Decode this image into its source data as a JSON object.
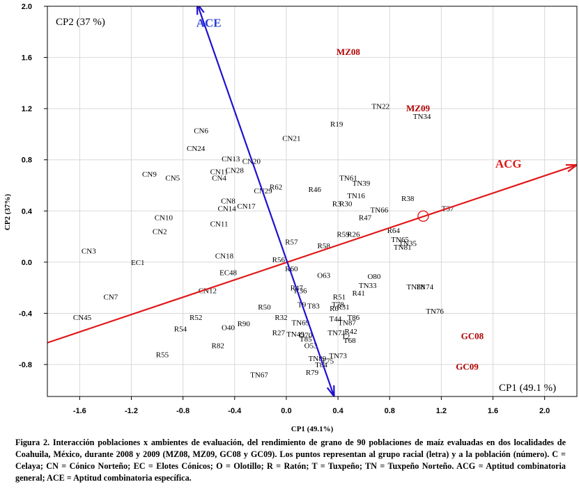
{
  "chart_data": {
    "type": "scatter",
    "title": "",
    "xlabel": "CP1 (49.1%)",
    "ylabel": "CP2 (37%)",
    "xlim": [
      -1.85,
      2.25
    ],
    "ylim": [
      -1.05,
      2.0
    ],
    "xticks": [
      -1.6,
      -1.2,
      -0.8,
      -0.4,
      0.0,
      0.4,
      0.8,
      1.2,
      1.6,
      2.0
    ],
    "yticks": [
      -0.8,
      -0.4,
      0.0,
      0.4,
      0.8,
      1.2,
      1.6,
      2.0
    ],
    "xtick_labels": [
      "-1.6",
      "-1.2",
      "-0.8",
      "-0.4",
      "0.0",
      "0.4",
      "0.8",
      "1.2",
      "1.6",
      "2.0"
    ],
    "ytick_labels": [
      "-0.8",
      "-0.4",
      "0.0",
      "0.4",
      "0.8",
      "1.2",
      "1.6",
      "2.0"
    ],
    "corner_labels": {
      "top_left": "CP2 (37 %)",
      "bottom_right": "CP1 (49.1 %)"
    },
    "vectors": [
      {
        "name": "ACG",
        "color": "#e01818",
        "from": [
          -1.85,
          -0.63
        ],
        "to": [
          2.25,
          0.76
        ],
        "label_at": [
          1.72,
          0.74
        ]
      },
      {
        "name": "ACE",
        "color": "#2010d0",
        "from": [
          0.37,
          -1.05
        ],
        "to": [
          -0.69,
          2.02
        ],
        "label_at": [
          -0.6,
          1.84
        ]
      }
    ],
    "origin_marker": [
      1.06,
      0.36
    ],
    "environments": [
      {
        "label": "MZ08",
        "x": 0.48,
        "y": 1.64
      },
      {
        "label": "MZ09",
        "x": 1.02,
        "y": 1.2
      },
      {
        "label": "GC08",
        "x": 1.44,
        "y": -0.58
      },
      {
        "label": "GC09",
        "x": 1.4,
        "y": -0.82
      }
    ],
    "points": [
      {
        "label": "CN6",
        "x": -0.66,
        "y": 1.03
      },
      {
        "label": "CN24",
        "x": -0.7,
        "y": 0.89
      },
      {
        "label": "CN13",
        "x": -0.43,
        "y": 0.81
      },
      {
        "label": "CN20",
        "x": -0.27,
        "y": 0.79
      },
      {
        "label": "CN11",
        "x": -0.52,
        "y": 0.71
      },
      {
        "label": "CN28",
        "x": -0.4,
        "y": 0.72
      },
      {
        "label": "CN4",
        "x": -0.52,
        "y": 0.66
      },
      {
        "label": "CN9",
        "x": -1.06,
        "y": 0.69
      },
      {
        "label": "CN5",
        "x": -0.88,
        "y": 0.66
      },
      {
        "label": "CN21",
        "x": 0.04,
        "y": 0.97
      },
      {
        "label": "R19",
        "x": 0.39,
        "y": 1.08
      },
      {
        "label": "TN22",
        "x": 0.73,
        "y": 1.22
      },
      {
        "label": "TN34",
        "x": 1.05,
        "y": 1.14
      },
      {
        "label": "CN29",
        "x": -0.18,
        "y": 0.56
      },
      {
        "label": "R62",
        "x": -0.08,
        "y": 0.59
      },
      {
        "label": "R46",
        "x": 0.22,
        "y": 0.57
      },
      {
        "label": "TN61",
        "x": 0.48,
        "y": 0.66
      },
      {
        "label": "TN39",
        "x": 0.58,
        "y": 0.62
      },
      {
        "label": "TN16",
        "x": 0.54,
        "y": 0.52
      },
      {
        "label": "R38",
        "x": 0.94,
        "y": 0.5
      },
      {
        "label": "CN8",
        "x": -0.45,
        "y": 0.48
      },
      {
        "label": "CN14",
        "x": -0.46,
        "y": 0.42
      },
      {
        "label": "CN17",
        "x": -0.31,
        "y": 0.44
      },
      {
        "label": "R3",
        "x": 0.39,
        "y": 0.46
      },
      {
        "label": "R30",
        "x": 0.46,
        "y": 0.46
      },
      {
        "label": "TN66",
        "x": 0.72,
        "y": 0.41
      },
      {
        "label": "T37",
        "x": 1.25,
        "y": 0.42
      },
      {
        "label": "R47",
        "x": 0.61,
        "y": 0.35
      },
      {
        "label": "CN10",
        "x": -0.95,
        "y": 0.35
      },
      {
        "label": "CN11",
        "x": -0.52,
        "y": 0.3
      },
      {
        "label": "CN2",
        "x": -0.98,
        "y": 0.24
      },
      {
        "label": "R64",
        "x": 0.83,
        "y": 0.25
      },
      {
        "label": "R59",
        "x": 0.44,
        "y": 0.22
      },
      {
        "label": "R26",
        "x": 0.52,
        "y": 0.22
      },
      {
        "label": "TN65",
        "x": 0.88,
        "y": 0.18
      },
      {
        "label": "TN35",
        "x": 0.94,
        "y": 0.15
      },
      {
        "label": "TN81",
        "x": 0.9,
        "y": 0.12
      },
      {
        "label": "R57",
        "x": 0.04,
        "y": 0.16
      },
      {
        "label": "R58",
        "x": 0.29,
        "y": 0.13
      },
      {
        "label": "CN3",
        "x": -1.53,
        "y": 0.09
      },
      {
        "label": "EC1",
        "x": -1.15,
        "y": 0.0
      },
      {
        "label": "CN18",
        "x": -0.48,
        "y": 0.05
      },
      {
        "label": "R56",
        "x": -0.06,
        "y": 0.02
      },
      {
        "label": "EC48",
        "x": -0.45,
        "y": -0.08
      },
      {
        "label": "R60",
        "x": 0.04,
        "y": -0.05
      },
      {
        "label": "O63",
        "x": 0.29,
        "y": -0.1
      },
      {
        "label": "O80",
        "x": 0.68,
        "y": -0.11
      },
      {
        "label": "TN33",
        "x": 0.63,
        "y": -0.18
      },
      {
        "label": "R41",
        "x": 0.56,
        "y": -0.24
      },
      {
        "label": "TN88",
        "x": 1.0,
        "y": -0.19
      },
      {
        "label": "TN74",
        "x": 1.07,
        "y": -0.19
      },
      {
        "label": "CN12",
        "x": -0.61,
        "y": -0.22
      },
      {
        "label": "CN7",
        "x": -1.36,
        "y": -0.27
      },
      {
        "label": "R47",
        "x": 0.08,
        "y": -0.2
      },
      {
        "label": "R36",
        "x": 0.11,
        "y": -0.22
      },
      {
        "label": "R51",
        "x": 0.41,
        "y": -0.27
      },
      {
        "label": "TN76",
        "x": 1.15,
        "y": -0.38
      },
      {
        "label": "T9",
        "x": 0.12,
        "y": -0.33
      },
      {
        "label": "T83",
        "x": 0.21,
        "y": -0.34
      },
      {
        "label": "T78",
        "x": 0.4,
        "y": -0.33
      },
      {
        "label": "R31",
        "x": 0.44,
        "y": -0.35
      },
      {
        "label": "R6",
        "x": 0.37,
        "y": -0.36
      },
      {
        "label": "R50",
        "x": -0.17,
        "y": -0.35
      },
      {
        "label": "CN45",
        "x": -1.58,
        "y": -0.43
      },
      {
        "label": "R52",
        "x": -0.7,
        "y": -0.43
      },
      {
        "label": "R32",
        "x": -0.04,
        "y": -0.43
      },
      {
        "label": "T44",
        "x": 0.38,
        "y": -0.44
      },
      {
        "label": "T86",
        "x": 0.52,
        "y": -0.43
      },
      {
        "label": "TN87",
        "x": 0.47,
        "y": -0.47
      },
      {
        "label": "TN69",
        "x": 0.11,
        "y": -0.47
      },
      {
        "label": "R90",
        "x": -0.33,
        "y": -0.48
      },
      {
        "label": "O40",
        "x": -0.45,
        "y": -0.51
      },
      {
        "label": "R54",
        "x": -0.82,
        "y": -0.52
      },
      {
        "label": "R27",
        "x": -0.06,
        "y": -0.55
      },
      {
        "label": "TN49",
        "x": 0.07,
        "y": -0.56
      },
      {
        "label": "O70",
        "x": 0.15,
        "y": -0.57
      },
      {
        "label": "TN71",
        "x": 0.39,
        "y": -0.55
      },
      {
        "label": "R42",
        "x": 0.5,
        "y": -0.54
      },
      {
        "label": "T85",
        "x": 0.15,
        "y": -0.6
      },
      {
        "label": "T2",
        "x": 0.46,
        "y": -0.58
      },
      {
        "label": "T68",
        "x": 0.49,
        "y": -0.61
      },
      {
        "label": "O53",
        "x": 0.19,
        "y": -0.65
      },
      {
        "label": "R82",
        "x": -0.53,
        "y": -0.65
      },
      {
        "label": "R55",
        "x": -0.96,
        "y": -0.72
      },
      {
        "label": "TN73",
        "x": 0.4,
        "y": -0.73
      },
      {
        "label": "TN89",
        "x": 0.24,
        "y": -0.75
      },
      {
        "label": "T75",
        "x": 0.32,
        "y": -0.77
      },
      {
        "label": "T84",
        "x": 0.27,
        "y": -0.8
      },
      {
        "label": "R79",
        "x": 0.2,
        "y": -0.86
      },
      {
        "label": "TN67",
        "x": -0.21,
        "y": -0.88
      }
    ]
  },
  "caption": {
    "text": "Figura 2. Interacción poblaciones x ambientes de evaluación, del rendimiento de grano de 90 poblaciones de maíz evaluadas en dos localidades de Coahuila, México, durante 2008 y 2009 (MZ08, MZ09, GC08 y GC09). Los puntos representan al grupo racial (letra) y a la población (número). C = Celaya; CN = Cónico Norteño; EC = Elotes Cónicos; O = Olotillo; R = Ratón; T = Tuxpeño; TN = Tuxpeño Norteño. ACG = Aptitud combinatoria general; ACE = Aptitud combinatoria específica."
  }
}
